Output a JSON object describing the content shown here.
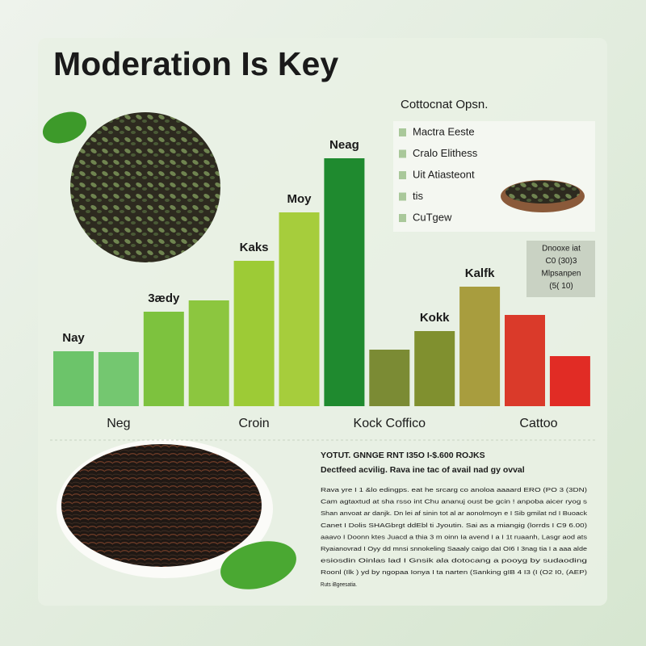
{
  "chart_data": {
    "type": "bar",
    "title": "Moderation Is Key",
    "subtitle": "Cottocnat Opsn.",
    "categories": [
      null,
      "Neg",
      null,
      null,
      "Croin",
      null,
      null,
      "Kock Coffico",
      null,
      null,
      "Cattoo",
      null
    ],
    "values": [
      68,
      67,
      117,
      131,
      180,
      240,
      307,
      70,
      93,
      148,
      113,
      62
    ],
    "bar_labels": [
      "Nay",
      null,
      "3ædy",
      null,
      "Kaks",
      "Moy",
      "Neag",
      null,
      "Kokk",
      "Kalfk",
      null,
      null
    ],
    "colors": [
      "#6cc46a",
      "#74c770",
      "#7dc23e",
      "#8cc63f",
      "#9dcb36",
      "#a6cd3c",
      "#1f8a2f",
      "#7b8b34",
      "#80902f",
      "#a89d3e",
      "#da3a2a",
      "#e12c25"
    ],
    "ylim": [
      0,
      320
    ],
    "legend": [
      "Mactra Eeste",
      "Cralo Elithess",
      "Uit Atiasteont",
      "tis",
      "CuTgew"
    ]
  },
  "note_box": [
    "Dnooxe iat",
    "C0 (30)3",
    "Mlpsanpen",
    "(5( 10)"
  ],
  "text_panel": {
    "heading": "YOTUT. GNNGE RNT I35O   I-$.600  ROJKS",
    "subheading": "Dectfeed acvilig. Rava ine tac of avail nad gy ovval",
    "body": [
      "Rava yre I 1 &lo edingps. eat he srcarg co anoloa aaaard ERO (PO 3 (3DN)",
      "Cam agtaxtud at sha rsso int Chu ananuj oust be gcin ! anpoba aicer ryog s",
      "Shan anvoat ar danjk. Dn lei af sinin tot al ar aonolmoyn e I Sib gmilat nd I Buoack",
      "Canet I Dolis SHAGbrgt ddEbl ti Jyoutin. Sai as a miangig (lorrds I C9 6.00)",
      "aaavo I Doonn ktes Juacd a thia 3 m oinn Ia avend I a I 1t ruaanh, Lasgr aod ats",
      "Ryaianovrad I Oyy dd mnsi snnokeling Saaaly caigo daI OI6 I 3nag tia I a aaa alde",
      "esiosdin Oinlas lad I Gnsik ala dotocang a pooyg by sudaoding",
      "Roonl (Ilk ) yd by ngopaa Ionya I ta narten (Sanking gIB 4 I3 (I (O2 I0, (AEP)",
      "Ruts iBgeesatia."
    ]
  }
}
